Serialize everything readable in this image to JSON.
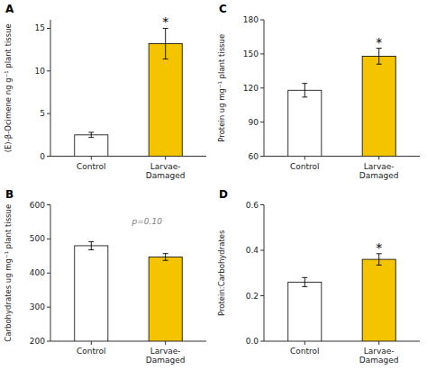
{
  "chart_data": [
    {
      "type": "bar",
      "title": "A",
      "ylabel": "(E)-β-Ocimene ng g⁻¹ plant tissue",
      "categories": [
        "Control",
        "Larvae-\nDamaged"
      ],
      "values": [
        2.5,
        13.2
      ],
      "errors": [
        0.3,
        1.8
      ],
      "colors": [
        "#ffffff",
        "#f5c400"
      ],
      "ylim": [
        0,
        16
      ],
      "yticks": [
        0,
        5,
        10,
        15
      ],
      "significance": [
        null,
        "*"
      ],
      "grid": false
    },
    {
      "type": "bar",
      "title": "C",
      "ylabel": "Protein ug mg⁻¹ plant tissue",
      "categories": [
        "Control",
        "Larvae-\nDamaged"
      ],
      "values": [
        118,
        148
      ],
      "errors": [
        6,
        7
      ],
      "colors": [
        "#ffffff",
        "#f5c400"
      ],
      "ylim": [
        60,
        180
      ],
      "yticks": [
        60,
        90,
        120,
        150,
        180
      ],
      "significance": [
        null,
        "*"
      ],
      "grid": false
    },
    {
      "type": "bar",
      "title": "B",
      "ylabel": "Carbohydrates ug mg⁻¹ plant tissue",
      "categories": [
        "Control",
        "Larvae-\nDamaged"
      ],
      "values": [
        480,
        447
      ],
      "errors": [
        12,
        10
      ],
      "colors": [
        "#ffffff",
        "#f5c400"
      ],
      "ylim": [
        200,
        600
      ],
      "yticks": [
        200,
        300,
        400,
        500,
        600
      ],
      "annotation": "p=0.10",
      "grid": false
    },
    {
      "type": "bar",
      "title": "D",
      "ylabel": "Protein:Carbohydrates",
      "categories": [
        "Control",
        "Larvae-\nDamaged"
      ],
      "values": [
        0.26,
        0.36
      ],
      "errors": [
        0.02,
        0.025
      ],
      "colors": [
        "#ffffff",
        "#f5c400"
      ],
      "ylim": [
        0,
        0.6
      ],
      "yticks": [
        {
          "value": 0,
          "label": "0.0"
        },
        0.2,
        0.4,
        0.6
      ],
      "significance": [
        null,
        "*"
      ],
      "grid": false
    }
  ]
}
